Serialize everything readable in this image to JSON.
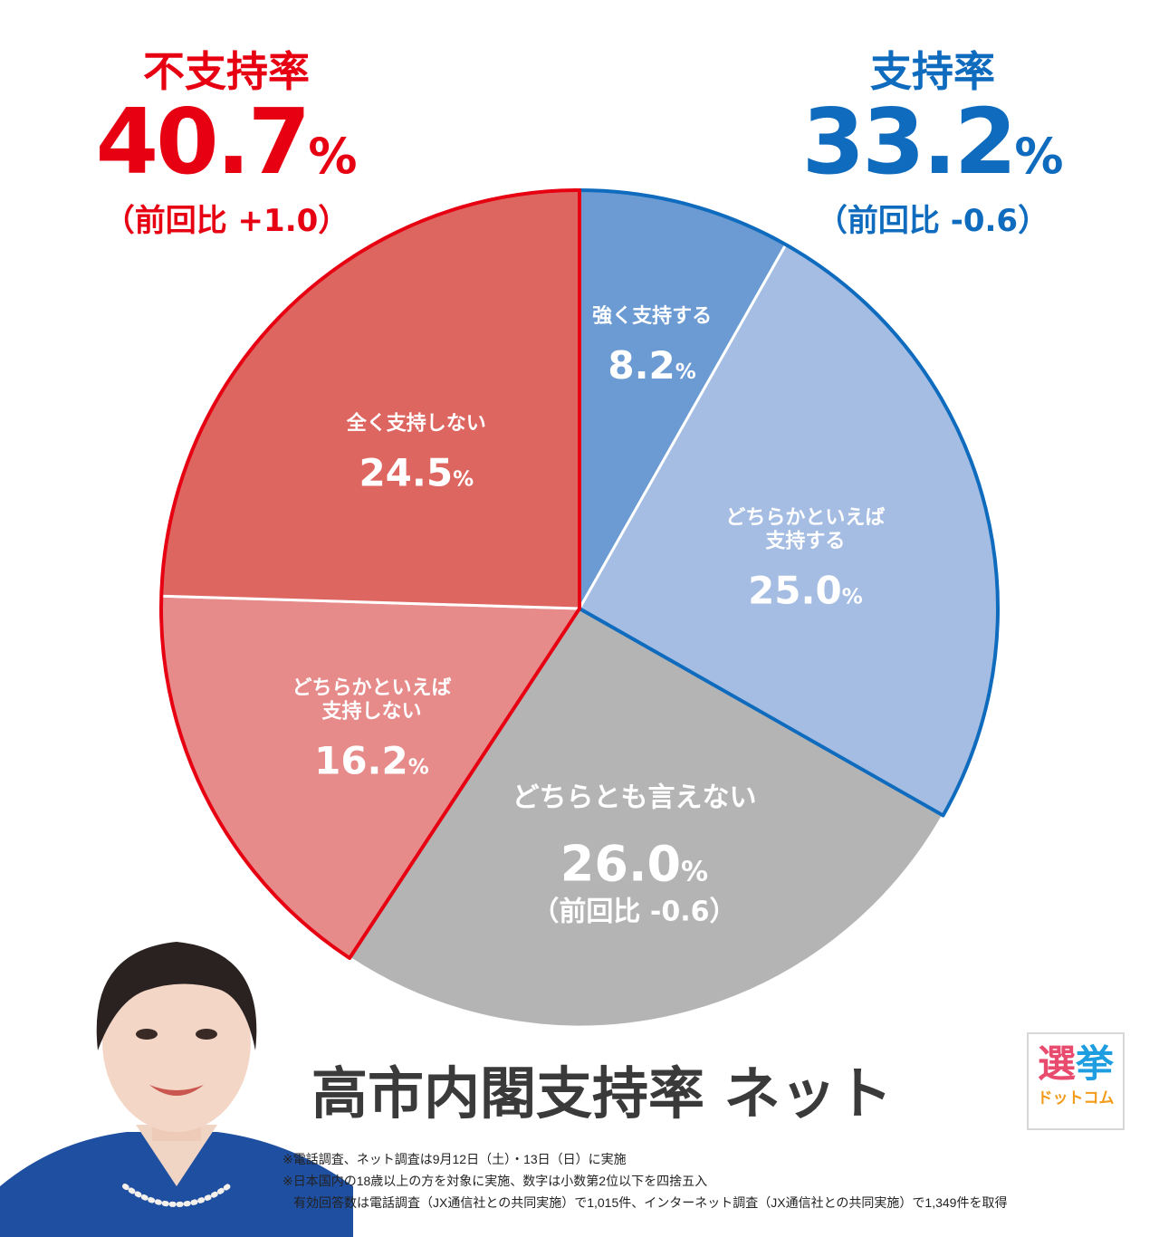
{
  "header_left": {
    "label": "不支持率",
    "value": "40.7",
    "unit": "%",
    "compare": "（前回比 +1.0）",
    "color": "#e60012"
  },
  "header_right": {
    "label": "支持率",
    "value": "33.2",
    "unit": "%",
    "compare": "（前回比 -0.6）",
    "color": "#0f6bbd"
  },
  "chart_data": {
    "type": "pie",
    "start": "12 o'clock",
    "direction": "clockwise",
    "slices": [
      {
        "label": "強く支持する",
        "value": 8.2,
        "display": "8.2",
        "color": "#6b9bd2"
      },
      {
        "label": "どちらかといえば\n支持する",
        "value": 25.0,
        "display": "25.0",
        "color": "#a5bde2"
      },
      {
        "label": "どちらとも言えない",
        "value": 26.0,
        "display": "26.0",
        "note": "（前回比 -0.6）",
        "color": "#b4b4b5"
      },
      {
        "label": "どちらかといえば\n支持しない",
        "value": 16.2,
        "display": "16.2",
        "color": "#e68b8a"
      },
      {
        "label": "全く支持しない",
        "value": 24.5,
        "display": "24.5",
        "color": "#de6661"
      }
    ],
    "groups": [
      {
        "name": "支持率",
        "slices": [
          0,
          1
        ],
        "outline": "#0f6bbd"
      },
      {
        "name": "不支持率",
        "slices": [
          3,
          4
        ],
        "outline": "#e60012"
      }
    ],
    "unit": "%"
  },
  "title": "高市内閣支持率 ネット",
  "logo": {
    "line1_a": "選",
    "line1_b": "挙",
    "line2": "ドットコム"
  },
  "notes": [
    "※電話調査、ネット調査は9月12日（土）・13日（日）に実施",
    "※日本国内の18歳以上の方を対象に実施、数字は小数第2位以下を四捨五入",
    "有効回答数は電話調査（JX通信社との共同実施）で1,015件、インターネット調査（JX通信社との共同実施）で1,349件を取得"
  ]
}
